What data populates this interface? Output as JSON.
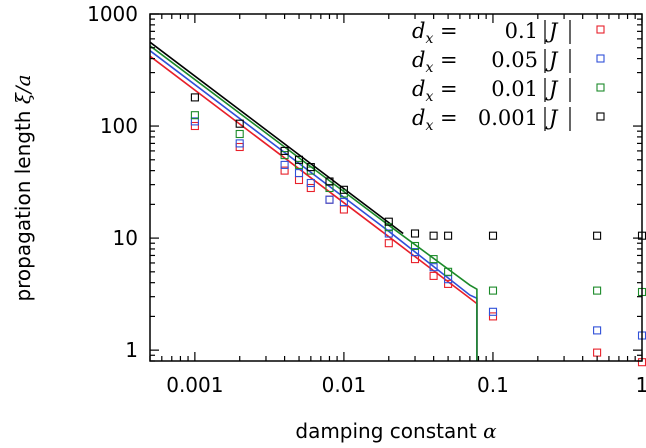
{
  "chart_data": {
    "type": "scatter",
    "x_scale": "log",
    "y_scale": "log",
    "xlim": [
      0.0005,
      1
    ],
    "ylim": [
      0.8,
      1000
    ],
    "x_ticks": [
      {
        "value": 0.001,
        "label": "0.001"
      },
      {
        "value": 0.01,
        "label": "0.01"
      },
      {
        "value": 0.1,
        "label": "0.1"
      },
      {
        "value": 1,
        "label": "1"
      }
    ],
    "y_ticks": [
      {
        "value": 1,
        "label": "1"
      },
      {
        "value": 10,
        "label": "10"
      },
      {
        "value": 100,
        "label": "100"
      },
      {
        "value": 1000,
        "label": "1000"
      }
    ],
    "xlabel": {
      "text": "damping constant ",
      "symbol": "α"
    },
    "ylabel": {
      "text": "propagation length ",
      "symbol": "ξ/a"
    },
    "legend_position": "top-right",
    "series": [
      {
        "name": "d_x = 0.1 |J|",
        "legend_value": "0.1",
        "color": "#e8202a",
        "points": [
          [
            0.001,
            100
          ],
          [
            0.002,
            65
          ],
          [
            0.004,
            40
          ],
          [
            0.005,
            33
          ],
          [
            0.006,
            28
          ],
          [
            0.008,
            22
          ],
          [
            0.01,
            18
          ],
          [
            0.02,
            9
          ],
          [
            0.03,
            6.5
          ],
          [
            0.04,
            4.6
          ],
          [
            0.05,
            3.9
          ],
          [
            0.1,
            2.0
          ],
          [
            0.5,
            0.95
          ],
          [
            1,
            0.78
          ]
        ],
        "line": [
          [
            0.0005,
            420
          ],
          [
            0.02,
            10.3
          ],
          [
            0.07,
            2.9
          ],
          [
            0.078,
            2.6
          ],
          [
            0.078,
            0.8
          ]
        ]
      },
      {
        "name": "d_x = 0.05 |J|",
        "legend_value": "0.05",
        "color": "#3050d8",
        "points": [
          [
            0.001,
            110
          ],
          [
            0.002,
            70
          ],
          [
            0.004,
            45
          ],
          [
            0.005,
            38
          ],
          [
            0.006,
            31
          ],
          [
            0.008,
            22
          ],
          [
            0.01,
            21
          ],
          [
            0.02,
            11
          ],
          [
            0.03,
            7.5
          ],
          [
            0.04,
            5.5
          ],
          [
            0.05,
            4.3
          ],
          [
            0.1,
            2.2
          ],
          [
            0.5,
            1.5
          ],
          [
            1,
            1.35
          ]
        ],
        "line": [
          [
            0.0005,
            470
          ],
          [
            0.02,
            11.5
          ],
          [
            0.07,
            3.1
          ],
          [
            0.078,
            2.9
          ],
          [
            0.078,
            0.8
          ]
        ]
      },
      {
        "name": "d_x = 0.01 |J|",
        "legend_value": "0.01",
        "color": "#1c8a2a",
        "points": [
          [
            0.001,
            125
          ],
          [
            0.002,
            85
          ],
          [
            0.004,
            55
          ],
          [
            0.005,
            45
          ],
          [
            0.006,
            40
          ],
          [
            0.008,
            28
          ],
          [
            0.01,
            25
          ],
          [
            0.02,
            12.5
          ],
          [
            0.03,
            8.5
          ],
          [
            0.04,
            6.5
          ],
          [
            0.05,
            5.0
          ],
          [
            0.1,
            3.4
          ],
          [
            0.5,
            3.4
          ],
          [
            1,
            3.3
          ]
        ],
        "line": [
          [
            0.0005,
            520
          ],
          [
            0.02,
            13
          ],
          [
            0.07,
            3.8
          ],
          [
            0.078,
            3.5
          ],
          [
            0.078,
            0.8
          ]
        ]
      },
      {
        "name": "d_x = 0.001 |J|",
        "legend_value": "0.001",
        "color": "#000000",
        "points": [
          [
            0.001,
            180
          ],
          [
            0.002,
            105
          ],
          [
            0.004,
            60
          ],
          [
            0.005,
            50
          ],
          [
            0.006,
            43
          ],
          [
            0.008,
            32
          ],
          [
            0.01,
            27
          ],
          [
            0.02,
            14
          ],
          [
            0.03,
            11
          ],
          [
            0.04,
            10.5
          ],
          [
            0.05,
            10.5
          ],
          [
            0.1,
            10.5
          ],
          [
            0.5,
            10.5
          ],
          [
            1,
            10.5
          ]
        ],
        "line": [
          [
            0.0005,
            560
          ],
          [
            0.025,
            11
          ]
        ]
      }
    ],
    "legend_lhs": "d",
    "legend_subscript": "x",
    "legend_unit": "J"
  }
}
